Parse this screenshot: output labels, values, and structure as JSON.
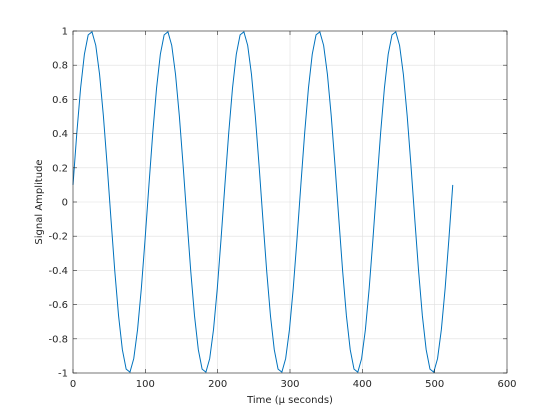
{
  "chart_data": {
    "type": "line",
    "xlabel": "Time (μ seconds)",
    "ylabel": "Signal Amplitude",
    "x": [
      0,
      5.25,
      10.5,
      15.75,
      21,
      26.25,
      31.5,
      36.75,
      42,
      47.25,
      52.5,
      57.75,
      63,
      68.25,
      73.5,
      78.75,
      84,
      89.25,
      94.5,
      99.75,
      105,
      110.25,
      115.5,
      120.75,
      126,
      131.25,
      136.5,
      141.75,
      147,
      152.25,
      157.5,
      162.75,
      168,
      173.25,
      178.5,
      183.75,
      189,
      194.25,
      199.5,
      204.75,
      210,
      215.25,
      220.5,
      225.75,
      231,
      236.25,
      241.5,
      246.75,
      252,
      257.25,
      262.5,
      267.75,
      273,
      278.25,
      283.5,
      288.75,
      294,
      299.25,
      304.5,
      309.75,
      315,
      320.25,
      325.5,
      330.75,
      336,
      341.25,
      346.5,
      351.75,
      357,
      362.25,
      367.5,
      372.75,
      378,
      383.25,
      388.5,
      393.75,
      399,
      404.25,
      409.5,
      414.75,
      420,
      425.25,
      430.5,
      435.75,
      441,
      446.25,
      451.5,
      456.75,
      462,
      467.25,
      472.5,
      477.75,
      483,
      488.25,
      493.5,
      498.75,
      504,
      509.25,
      514.5,
      519.75,
      525
    ],
    "series": [
      {
        "color": "#0072BD",
        "values": [
          0.0998,
          0.4024,
          0.6656,
          0.8637,
          0.9771,
          0.995,
          0.9157,
          0.746,
          0.5041,
          0.2126,
          -0.0998,
          -0.4024,
          -0.6656,
          -0.8637,
          -0.9771,
          -0.995,
          -0.9157,
          -0.746,
          -0.5041,
          -0.2126,
          0.0998,
          0.4024,
          0.6656,
          0.8637,
          0.9771,
          0.995,
          0.9157,
          0.746,
          0.5041,
          0.2126,
          -0.0998,
          -0.4024,
          -0.6656,
          -0.8637,
          -0.9771,
          -0.995,
          -0.9157,
          -0.746,
          -0.5041,
          -0.2126,
          0.0998,
          0.4024,
          0.6656,
          0.8637,
          0.9771,
          0.995,
          0.9157,
          0.746,
          0.5041,
          0.2126,
          -0.0998,
          -0.4024,
          -0.6656,
          -0.8637,
          -0.9771,
          -0.995,
          -0.9157,
          -0.746,
          -0.5041,
          -0.2126,
          0.0998,
          0.4024,
          0.6656,
          0.8637,
          0.9771,
          0.995,
          0.9157,
          0.746,
          0.5041,
          0.2126,
          -0.0998,
          -0.4024,
          -0.6656,
          -0.8637,
          -0.9771,
          -0.995,
          -0.9157,
          -0.746,
          -0.5041,
          -0.2126,
          0.0998,
          0.4024,
          0.6656,
          0.8637,
          0.9771,
          0.995,
          0.9157,
          0.746,
          0.5041,
          0.2126,
          -0.0998,
          -0.4024,
          -0.6656,
          -0.8637,
          -0.9771,
          -0.995,
          -0.9157,
          -0.746,
          -0.5041,
          -0.2126,
          0.0998
        ]
      }
    ],
    "xlim": [
      0,
      600
    ],
    "xticks": [
      0,
      100,
      200,
      300,
      400,
      500,
      600
    ],
    "ylim": [
      -1,
      1
    ],
    "yticks": [
      -1,
      -0.8,
      -0.6,
      -0.4,
      -0.2,
      0,
      0.2,
      0.4,
      0.6,
      0.8,
      1
    ],
    "grid": true
  }
}
